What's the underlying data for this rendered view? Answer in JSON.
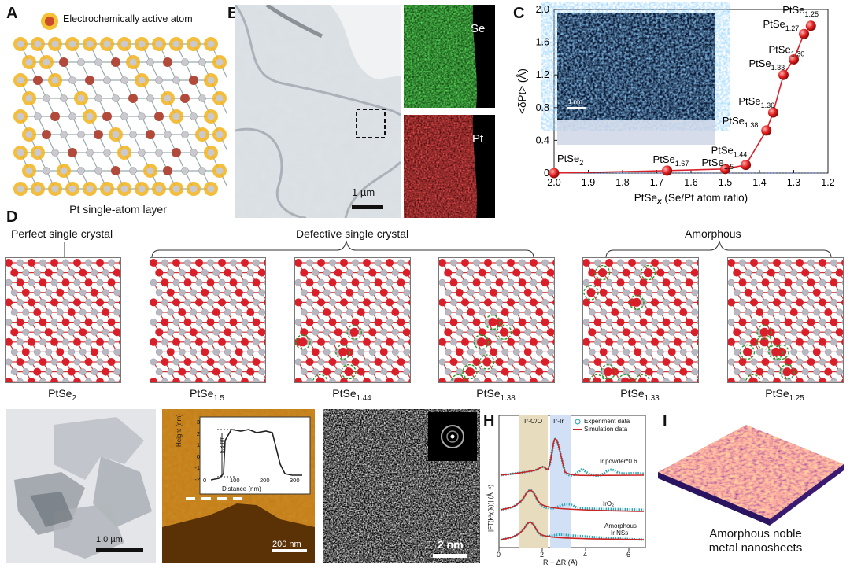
{
  "panels": {
    "A": {
      "label": "A",
      "legend": "Electrochemically active atom",
      "caption": "Pt single-atom layer"
    },
    "B": {
      "label": "B",
      "scale": "1 µm",
      "map_se": "Se",
      "map_pt": "Pt"
    },
    "C": {
      "label": "C",
      "inset_scale": "1 nm"
    },
    "D": {
      "label": "D",
      "group1": "Perfect single crystal",
      "group2": "Defective single crystal",
      "group3": "Amorphous",
      "structures": [
        {
          "base": "PtSe",
          "sub": "2"
        },
        {
          "base": "PtSe",
          "sub": "1.5"
        },
        {
          "base": "PtSe",
          "sub": "1.44"
        },
        {
          "base": "PtSe",
          "sub": "1.38"
        },
        {
          "base": "PtSe",
          "sub": "1.33"
        },
        {
          "base": "PtSe",
          "sub": "1.25"
        }
      ]
    },
    "E": {
      "label": "E",
      "scale": "1.0 µm"
    },
    "F": {
      "label": "F",
      "scale": "200 nm",
      "step": "5.3 nm",
      "xlabel": "Distance (nm)",
      "ylabel": "Height (nm)",
      "xticks": [
        "0",
        "100",
        "200",
        "300"
      ],
      "yticks": [
        "3",
        "2",
        "1",
        "0",
        "-1",
        "-2"
      ]
    },
    "G": {
      "label": "G",
      "scale": "2 nm"
    },
    "H": {
      "label": "H",
      "region1": "Ir-C/O",
      "region2": "Ir-Ir",
      "legend1": "Experiment data",
      "legend2": "Simulation data",
      "curve1": "Ir powder*0.6",
      "curve2": "IrO₂",
      "curve3a": "Amorphous",
      "curve3b": "Ir NSs",
      "xlabel": "R + ΔR (Å)",
      "ylabel": "|FT(k³χ(k))| (Å⁻⁴)",
      "xticks": [
        "0",
        "2",
        "4",
        "6"
      ]
    },
    "I": {
      "label": "I",
      "caption1": "Amorphous noble",
      "caption2": "metal nanosheets"
    }
  },
  "chart_data": {
    "type": "line",
    "title": "",
    "xlabel": "PtSe_x (Se/Pt atom ratio)",
    "ylabel": "<δ_Pt> (Å)",
    "xlim": [
      2.0,
      1.2
    ],
    "ylim": [
      0,
      2.0
    ],
    "x_ticks": [
      "2.0",
      "1.9",
      "1.8",
      "1.7",
      "1.6",
      "1.5",
      "1.4",
      "1.3",
      "1.2"
    ],
    "y_ticks": [
      "0",
      "0.4",
      "0.8",
      "1.2",
      "1.6",
      "2.0"
    ],
    "points": [
      {
        "x": 2.0,
        "y": 0.0,
        "base": "PtSe",
        "sub": "2"
      },
      {
        "x": 1.67,
        "y": 0.03,
        "base": "PtSe",
        "sub": "1.67"
      },
      {
        "x": 1.5,
        "y": 0.05,
        "base": "PtSe",
        "sub": "1.5"
      },
      {
        "x": 1.44,
        "y": 0.1,
        "base": "PtSe",
        "sub": "1.44"
      },
      {
        "x": 1.38,
        "y": 0.52,
        "base": "PtSe",
        "sub": "1.38"
      },
      {
        "x": 1.36,
        "y": 0.74,
        "base": "PtSe",
        "sub": "1.36"
      },
      {
        "x": 1.33,
        "y": 1.2,
        "base": "PtSe",
        "sub": "1.33"
      },
      {
        "x": 1.3,
        "y": 1.39,
        "base": "PtSe",
        "sub": "1.30"
      },
      {
        "x": 1.27,
        "y": 1.7,
        "base": "PtSe",
        "sub": "1.27"
      },
      {
        "x": 1.25,
        "y": 1.8,
        "base": "PtSe",
        "sub": "1.25"
      }
    ],
    "grid": false
  },
  "colors": {
    "pt": "#d81f2a",
    "se": "#b8b8c2",
    "map_se": "#27b927",
    "map_pt": "#d01818",
    "gold": "#f2b31a",
    "fit": "#cc2222",
    "exp": "#2fa6b8"
  }
}
